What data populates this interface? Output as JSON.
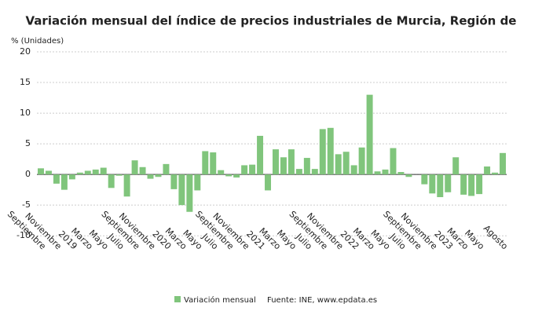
{
  "chart_data": {
    "type": "bar",
    "title": "Variación mensual del índice de precios industriales de Murcia, Región de",
    "y_label": "% (Unidades)",
    "source": "Fuente: INE, www.epdata.es",
    "categories": [
      "Septiembre",
      null,
      "Noviembre",
      null,
      "2019",
      null,
      "Marzo",
      null,
      "Mayo",
      null,
      "Julio",
      null,
      "Septiembre",
      null,
      "Noviembre",
      null,
      "2020",
      null,
      "Marzo",
      null,
      "Mayo",
      null,
      "Julio",
      null,
      "Septiembre",
      null,
      "Noviembre",
      null,
      "2021",
      null,
      "Marzo",
      null,
      "Mayo",
      null,
      "Julio",
      null,
      "Septiembre",
      null,
      "Noviembre",
      null,
      "2022",
      null,
      "Marzo",
      null,
      "Mayo",
      null,
      "Julio",
      null,
      "Septiembre",
      null,
      "Noviembre",
      null,
      "2023",
      null,
      "Marzo",
      null,
      "Mayo",
      null,
      null,
      "Agosto"
    ],
    "series": [
      {
        "name": "Variación mensual",
        "color": "#80c57c",
        "values": [
          1.0,
          0.6,
          -1.5,
          -2.5,
          -0.8,
          0.3,
          0.6,
          0.8,
          1.1,
          -2.2,
          -0.2,
          -3.6,
          2.3,
          1.2,
          -0.7,
          -0.4,
          1.7,
          -2.4,
          -5.0,
          -6.1,
          -2.6,
          3.8,
          3.6,
          0.7,
          -0.3,
          -0.5,
          1.5,
          1.6,
          6.3,
          -2.6,
          4.1,
          2.8,
          4.1,
          0.9,
          2.7,
          0.9,
          7.4,
          7.6,
          3.3,
          3.7,
          1.5,
          4.4,
          13.0,
          0.5,
          0.8,
          4.3,
          0.4,
          -0.4,
          0.0,
          -1.6,
          -3.1,
          -3.7,
          -2.9,
          2.8,
          -3.3,
          -3.5,
          -3.2,
          1.3,
          0.3,
          3.5
        ]
      }
    ],
    "ylim": [
      -11,
      20
    ],
    "yticks": [
      -10,
      -5,
      0,
      5,
      10,
      15,
      20
    ],
    "grid": true
  }
}
